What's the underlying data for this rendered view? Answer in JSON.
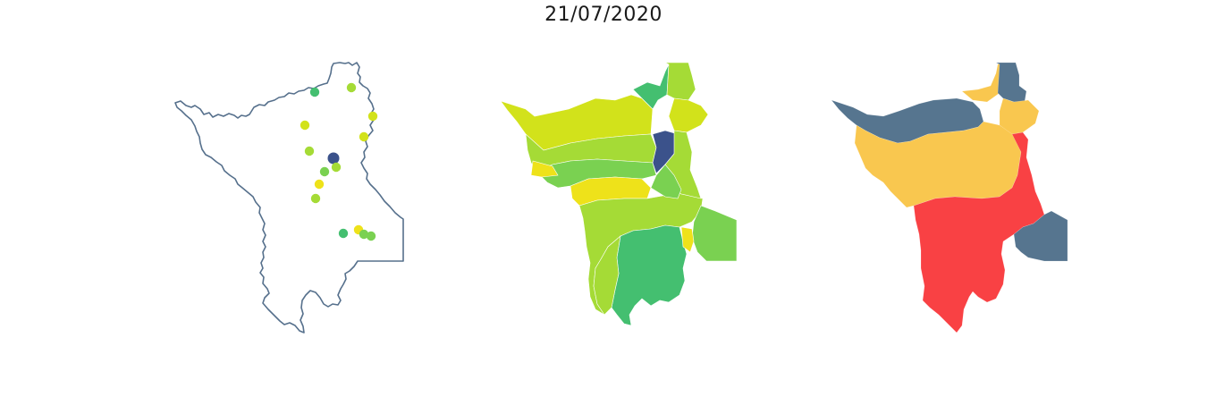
{
  "title": "21/07/2020",
  "colors": {
    "outline": "#56708c",
    "blue": "#3b528b",
    "green": "#44bf70",
    "lightgreen": "#7ad151",
    "limegreen": "#a5db36",
    "yellowgreen": "#d2e21b",
    "yellow": "#eee21a",
    "slate": "#56758f",
    "orange": "#f9c74f",
    "red": "#f94144"
  },
  "stations": [
    {
      "color": "green"
    },
    {
      "color": "limegreen"
    },
    {
      "color": "yellowgreen"
    },
    {
      "color": "yellowgreen"
    },
    {
      "color": "yellowgreen"
    },
    {
      "color": "limegreen"
    },
    {
      "color": "blue"
    },
    {
      "color": "limegreen"
    },
    {
      "color": "lightgreen"
    },
    {
      "color": "yellow"
    },
    {
      "color": "limegreen"
    },
    {
      "color": "green"
    },
    {
      "color": "yellow"
    },
    {
      "color": "lightgreen"
    },
    {
      "color": "lightgreen"
    }
  ]
}
